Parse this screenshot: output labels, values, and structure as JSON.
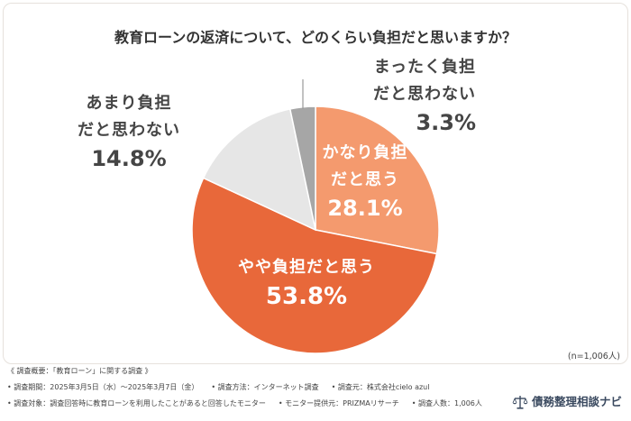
{
  "chart_data": {
    "type": "pie",
    "title": "教育ローンの返済について、どのくらい負担だと思いますか？",
    "unit": "%",
    "slices": [
      {
        "label_lines": [
          "かなり負担",
          "だと思う"
        ],
        "value": 28.1,
        "value_label": "28.1%",
        "color": "#F49A6E"
      },
      {
        "label_lines": [
          "やや負担だと思う"
        ],
        "value": 53.8,
        "value_label": "53.8%",
        "color": "#E8683A"
      },
      {
        "label_lines": [
          "あまり負担",
          "だと思わない"
        ],
        "value": 14.8,
        "value_label": "14.8%",
        "color": "#E6E6E6"
      },
      {
        "label_lines": [
          "まったく負担",
          "だと思わない"
        ],
        "value": 3.3,
        "value_label": "3.3%",
        "color": "#A6A6A6"
      }
    ]
  },
  "sample_note": "(n=1,006人)",
  "survey": {
    "heading": "《 調査概要：「教育ローン」に関する調査 》",
    "rows": [
      [
        "• 調査期間：2025年3月5日（水）～2025年3月7日（金）",
        "• 調査方法：インターネット調査",
        "• 調査元：株式会社cielo azul"
      ],
      [
        "• 調査対象：調査回答時に教育ローンを利用したことがあると回答したモニター",
        "• モニター提供元：PRIZMAリサーチ",
        "• 調査人数：1,006人"
      ]
    ]
  },
  "logo": {
    "text": "債務整理相談ナビ",
    "icon": "scale-icon",
    "color": "#3B4A60"
  }
}
